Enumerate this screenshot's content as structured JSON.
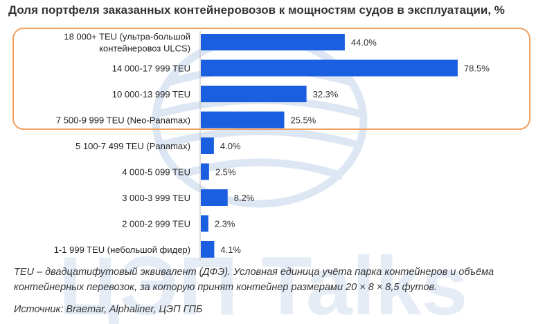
{
  "chart_data": {
    "type": "bar",
    "orientation": "horizontal",
    "title": "Доля портфеля заказанных контейнеровозов к мощностям судов в эксплуатации, %",
    "categories": [
      [
        "18 000+ TEU (ультра-большой",
        "контейнеровоз  ULCS)"
      ],
      [
        "14 000-17 999 TEU"
      ],
      [
        "10 000-13 999 TEU"
      ],
      [
        "7 500-9 999 TEU (Neo-Panamax)"
      ],
      [
        "5 100-7 499 TEU (Panamax)"
      ],
      [
        "4 000-5 099 TEU"
      ],
      [
        "3 000-3 999 TEU"
      ],
      [
        "2 000-2 999 TEU"
      ],
      [
        "1-1 999 TEU (небольшой фидер)"
      ]
    ],
    "values": [
      44.0,
      78.5,
      32.3,
      25.5,
      4.0,
      2.5,
      8.2,
      2.3,
      4.1
    ],
    "value_labels": [
      "44.0%",
      "78.5%",
      "32.3%",
      "25.5%",
      "4.0%",
      "2.5%",
      "8.2%",
      "2.3%",
      "4.1%"
    ],
    "bar_color": "#1a5fe0",
    "highlight_color": "#f0a060",
    "highlighted_categories": [
      0,
      1,
      2,
      3
    ]
  },
  "note": "TEU – двадцатифутовый эквивалент (ДФЭ). Условная единица учёта парка контейнеров и объёма контейнерных перевозок, за которую принят контейнер размерами 20 × 8 × 8,5 футов.",
  "source": "Источник: Braemar, Alphaliner, ЦЭП ГПБ",
  "watermark": "ЦЭП Talks"
}
